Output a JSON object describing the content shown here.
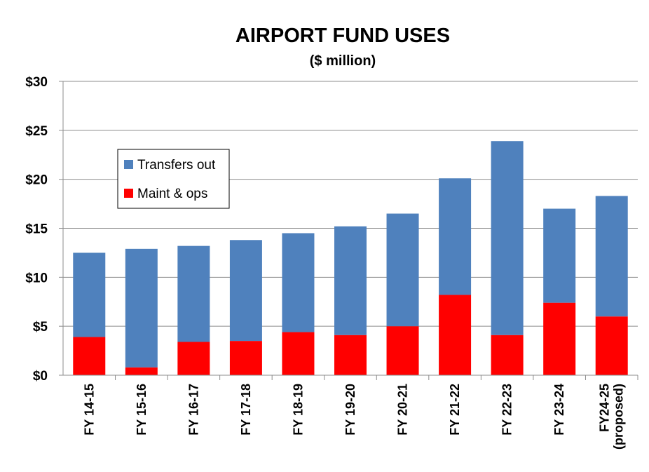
{
  "chart_data": {
    "type": "bar",
    "stacked": true,
    "title": "AIRPORT FUND USES",
    "subtitle": "($ million)",
    "xlabel": "",
    "ylabel": "",
    "ylim": [
      0,
      30
    ],
    "y_ticks": [
      0,
      5,
      10,
      15,
      20,
      25,
      30
    ],
    "y_tick_labels": [
      "$0",
      "$5",
      "$10",
      "$15",
      "$20",
      "$25",
      "$30"
    ],
    "grid": true,
    "legend_position": "upper-left",
    "categories": [
      [
        "FY 14-15"
      ],
      [
        "FY 15-16"
      ],
      [
        "FY 16-17"
      ],
      [
        "FY 17-18"
      ],
      [
        "FY 18-19"
      ],
      [
        "FY 19-20"
      ],
      [
        "FY 20-21"
      ],
      [
        "FY 21-22"
      ],
      [
        "FY 22-23"
      ],
      [
        "FY 23-24"
      ],
      [
        "FY24-25",
        "(proposed)"
      ]
    ],
    "series": [
      {
        "name": "Maint & ops",
        "color": "#ff0000",
        "values": [
          3.9,
          0.8,
          3.4,
          3.5,
          4.4,
          4.1,
          5.0,
          8.2,
          4.1,
          7.4,
          6.0
        ]
      },
      {
        "name": "Transfers out",
        "color": "#4f81bd",
        "values": [
          8.6,
          12.1,
          9.8,
          10.3,
          10.1,
          11.1,
          11.5,
          11.9,
          19.8,
          9.6,
          12.3
        ]
      }
    ],
    "legend_order": [
      "Transfers out",
      "Maint & ops"
    ]
  }
}
